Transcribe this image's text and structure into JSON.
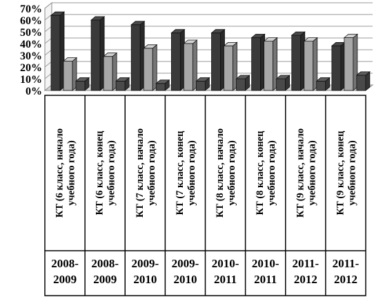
{
  "chart_data": {
    "type": "bar",
    "title": "",
    "xlabel": "",
    "ylabel": "",
    "ylim": [
      0,
      70
    ],
    "yticks": [
      "0%",
      "10%",
      "20%",
      "30%",
      "40%",
      "50%",
      "60%",
      "70%"
    ],
    "grid": true,
    "legend": "none",
    "categories": [
      [
        "КТ (6 класс, начало",
        "учебного года)"
      ],
      [
        "КТ (6 класс, конец",
        "учебного года)"
      ],
      [
        "КТ (7 класс, начало",
        "учебного года)"
      ],
      [
        "КТ (7 класс, конец",
        "учебного года)"
      ],
      [
        "КТ (8 класс, начало",
        "учебного года)"
      ],
      [
        "КТ (8 класс, конец",
        "учебного года)"
      ],
      [
        "КТ (9 класс, начало",
        "учебного года)"
      ],
      [
        "КТ (9 класс, конец",
        "учебного года)"
      ]
    ],
    "years": [
      [
        "2008-",
        "2009"
      ],
      [
        "2008-",
        "2009"
      ],
      [
        "2009-",
        "2010"
      ],
      [
        "2009-",
        "2010"
      ],
      [
        "2010-",
        "2011"
      ],
      [
        "2010-",
        "2011"
      ],
      [
        "2011-",
        "2012"
      ],
      [
        "2011-",
        "2012"
      ]
    ],
    "series": [
      {
        "values": [
          64,
          60,
          56,
          49,
          49,
          45,
          47,
          38
        ],
        "color": "#3a3a3a"
      },
      {
        "values": [
          25,
          29,
          36,
          40,
          38,
          42,
          42,
          45
        ],
        "color": "#a8a8a8"
      },
      {
        "values": [
          8,
          8,
          6,
          8,
          10,
          10,
          8,
          13
        ],
        "color": "#4a4a4a"
      }
    ]
  }
}
